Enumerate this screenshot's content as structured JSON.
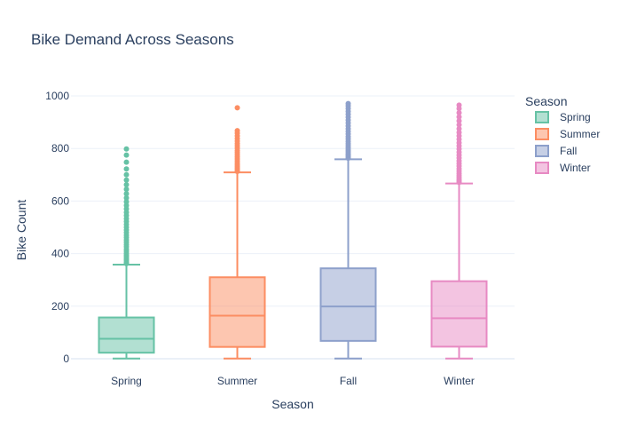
{
  "chart_data": {
    "type": "box",
    "title": "Bike Demand Across Seasons",
    "xlabel": "Season",
    "ylabel": "Bike Count",
    "ylim": [
      0,
      1000
    ],
    "yticks": [
      0,
      200,
      400,
      600,
      800,
      1000
    ],
    "grid": true,
    "legend": {
      "title": "Season",
      "placement": "top-right"
    },
    "categories": [
      "Spring",
      "Summer",
      "Fall",
      "Winter"
    ],
    "series": [
      {
        "name": "Spring",
        "color": "#66c2a5",
        "min": 1,
        "q1": 23,
        "median": 76,
        "q3": 157,
        "whisker_high": 358,
        "outliers": [
          362,
          368,
          375,
          381,
          388,
          394,
          401,
          409,
          417,
          426,
          434,
          443,
          452,
          461,
          470,
          480,
          490,
          500,
          511,
          522,
          533,
          545,
          557,
          570,
          583,
          597,
          612,
          628,
          645,
          662,
          680,
          700,
          722,
          748,
          775,
          798
        ]
      },
      {
        "name": "Summer",
        "color": "#fc8d62",
        "min": 1,
        "q1": 45,
        "median": 164,
        "q3": 310,
        "whisker_high": 709,
        "outliers": [
          713,
          718,
          724,
          730,
          737,
          744,
          752,
          760,
          768,
          776,
          784,
          792,
          801,
          810,
          819,
          828,
          838,
          848,
          858,
          868,
          955
        ]
      },
      {
        "name": "Fall",
        "color": "#8da0cb",
        "min": 1,
        "q1": 68,
        "median": 199,
        "q3": 344,
        "whisker_high": 759,
        "outliers": [
          763,
          768,
          774,
          780,
          787,
          794,
          802,
          810,
          818,
          827,
          836,
          845,
          855,
          865,
          875,
          886,
          897,
          908,
          919,
          930,
          941,
          952,
          962,
          971
        ]
      },
      {
        "name": "Winter",
        "color": "#e78ac3",
        "min": 1,
        "q1": 46,
        "median": 154,
        "q3": 295,
        "whisker_high": 667,
        "outliers": [
          671,
          676,
          682,
          689,
          697,
          705,
          714,
          723,
          733,
          743,
          753,
          764,
          775,
          786,
          798,
          810,
          822,
          835,
          848,
          861,
          875,
          890,
          905,
          920,
          936,
          952,
          965
        ]
      }
    ]
  }
}
